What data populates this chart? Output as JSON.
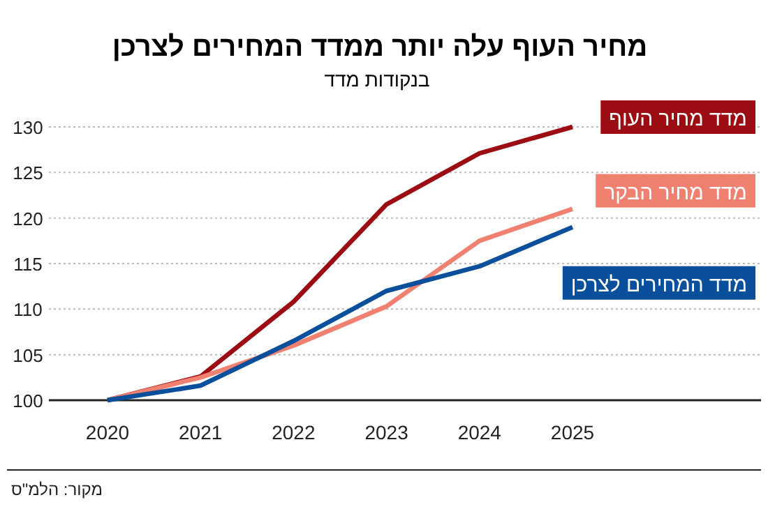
{
  "chart_data": {
    "type": "line",
    "title": "מחיר העוף עלה יותר ממדד המחירים לצרכן",
    "subtitle": "בנקודות מדד",
    "categories": [
      "2020",
      "2021",
      "2022",
      "2023",
      "2024",
      "2025"
    ],
    "series": [
      {
        "name": "מדד מחיר העוף",
        "color": "#9b0d12",
        "values": [
          100,
          102.6,
          110.8,
          121.5,
          127.1,
          130
        ]
      },
      {
        "name": "מדד מחיר הבקר",
        "color": "#f08070",
        "values": [
          100,
          102.5,
          106.0,
          110.3,
          117.5,
          121.0
        ]
      },
      {
        "name": "מדד המחירים לצרכן",
        "color": "#0a4f9c",
        "values": [
          100,
          101.6,
          106.5,
          112.0,
          114.7,
          119.0
        ]
      }
    ],
    "ylim": [
      100,
      130
    ],
    "yticks": [
      100,
      105,
      110,
      115,
      120,
      125,
      130
    ],
    "grid": "y",
    "line_style": "solid",
    "annotations": [
      "מקור: הלמ\"ס"
    ]
  }
}
